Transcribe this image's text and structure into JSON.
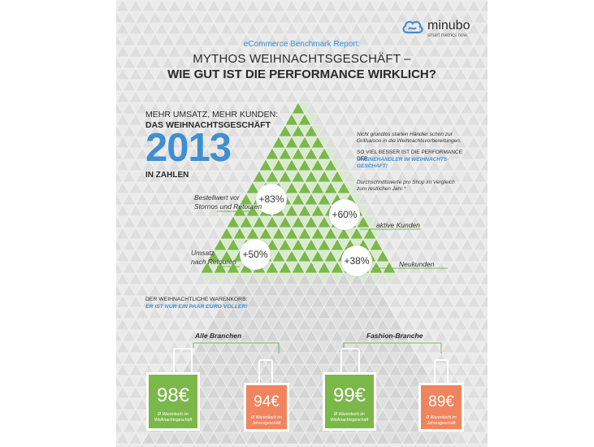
{
  "brand": {
    "name": "minubo",
    "tagline": "smart metrics now."
  },
  "header": {
    "report_label": "eCommerce Benchmark Report:",
    "title_line1": "MYTHOS WEIHNACHTSGESCHÄFT –",
    "title_line2": "WIE GUT IST DIE PERFORMANCE WIRKLICH?"
  },
  "intro": {
    "line1": "MEHR UMSATZ, MEHR KUNDEN:",
    "line2": "DAS WEIHNACHTSGESCHÄFT",
    "year": "2013",
    "line3": "IN ZAHLEN"
  },
  "notes": {
    "p1": "Nicht grundlos starten Händler schon zur Grillsaison in die Weihnachtsvorbereitungen.",
    "p2a": "SO VIEL BESSER IST DIE PERFORMANCE DER",
    "p2b": "ONLINEHÄNDLER IM WEIHNACHTS-GESCHÄFT!",
    "p3": "Durchschnittswerte pro Shop im Vergleich zum restlichen Jahr.*"
  },
  "metrics": [
    {
      "value": "+83%",
      "label_l1": "Bestellwert vor",
      "label_l2": "Stornos und Retouren"
    },
    {
      "value": "+60%",
      "label_l1": "aktive Kunden",
      "label_l2": ""
    },
    {
      "value": "+50%",
      "label_l1": "Umsatz",
      "label_l2": "nach Retouren"
    },
    {
      "value": "+38%",
      "label_l1": "Neukunden",
      "label_l2": ""
    }
  ],
  "basket": {
    "line1": "DER WEIHNACHTLICHE WARENKORB:",
    "line2": "ER IST NUR EIN PAAR EURO VOLLER!",
    "group_all": "Alle Branchen",
    "group_fashion": "Fashion-Branche",
    "bags": [
      {
        "price": "98€",
        "cap1": "Ø Warenkorb im",
        "cap2": "Weihnachtsgeschäft",
        "color": "#7bb84a"
      },
      {
        "price": "94€",
        "cap1": "Ø Warenkorb im",
        "cap2": "Jahresgeschäft",
        "color": "#f0845e"
      },
      {
        "price": "99€",
        "cap1": "Ø Warenkorb im",
        "cap2": "Weihnachtsgeschäft",
        "color": "#7bb84a"
      },
      {
        "price": "89€",
        "cap1": "Ø Warenkorb im",
        "cap2": "Jahresgeschäft",
        "color": "#f0845e"
      }
    ]
  },
  "colors": {
    "accent_blue": "#3f8fd2",
    "tree_green": "#7bb84a",
    "bag_orange": "#f0845e",
    "background": "#e6e6e6"
  }
}
